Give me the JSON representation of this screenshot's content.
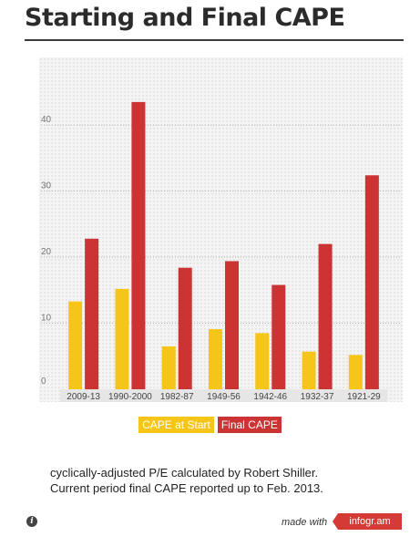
{
  "title": "Starting and Final CAPE",
  "note": {
    "line1": "cyclically-adjusted P/E calculated by Robert Shiller.",
    "line2": "Current period final CAPE reported up to Feb. 2013."
  },
  "footer": {
    "info_icon": "i",
    "made_with": "made with",
    "brand": "infogr.am"
  },
  "colors": {
    "start": "#f5c518",
    "final": "#cc3333"
  },
  "chart_data": {
    "type": "bar",
    "categories": [
      "2009-13",
      "1990-2000",
      "1982-87",
      "1949-56",
      "1942-46",
      "1932-37",
      "1921-29"
    ],
    "series": [
      {
        "name": "CAPE at Start",
        "values": [
          13.3,
          15.2,
          6.5,
          9.1,
          8.5,
          5.7,
          5.2
        ]
      },
      {
        "name": "Final CAPE",
        "values": [
          22.8,
          43.5,
          18.4,
          19.4,
          15.8,
          22.0,
          32.4
        ]
      }
    ],
    "ylim": [
      0,
      45
    ],
    "yticks": [
      0,
      10,
      20,
      30,
      40
    ],
    "grid": true,
    "legend_position": "bottom-center"
  }
}
